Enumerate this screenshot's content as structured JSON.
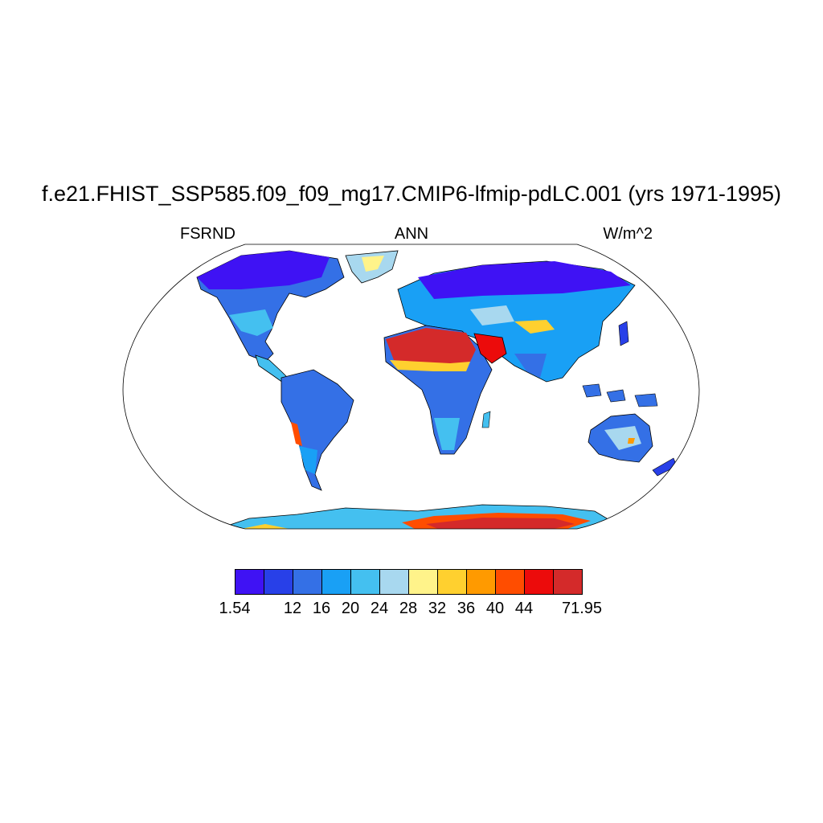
{
  "title": "f.e21.FHIST_SSP585.f09_f09_mg17.CMIP6-lfmip-pdLC.001 (yrs 1971-1995)",
  "left_label": "FSRND",
  "center_label": "ANN",
  "right_label": "W/m^2",
  "colorbar": {
    "colors": [
      "#3f12f4",
      "#2840e8",
      "#3470e6",
      "#19a0f5",
      "#44c0f0",
      "#a8d8ef",
      "#fff38a",
      "#ffd02f",
      "#ff9a00",
      "#ff4d00",
      "#ec0b0b",
      "#d42a2a"
    ],
    "labels": [
      {
        "text": "1.54",
        "boundary": 0
      },
      {
        "text": "12",
        "boundary": 2
      },
      {
        "text": "16",
        "boundary": 3
      },
      {
        "text": "20",
        "boundary": 4
      },
      {
        "text": "24",
        "boundary": 5
      },
      {
        "text": "28",
        "boundary": 6
      },
      {
        "text": "32",
        "boundary": 7
      },
      {
        "text": "36",
        "boundary": 8
      },
      {
        "text": "40",
        "boundary": 9
      },
      {
        "text": "44",
        "boundary": 10
      },
      {
        "text": "71.95",
        "boundary": 12
      }
    ]
  },
  "ocean_color": "#ffffff",
  "outline_color": "#000000"
}
